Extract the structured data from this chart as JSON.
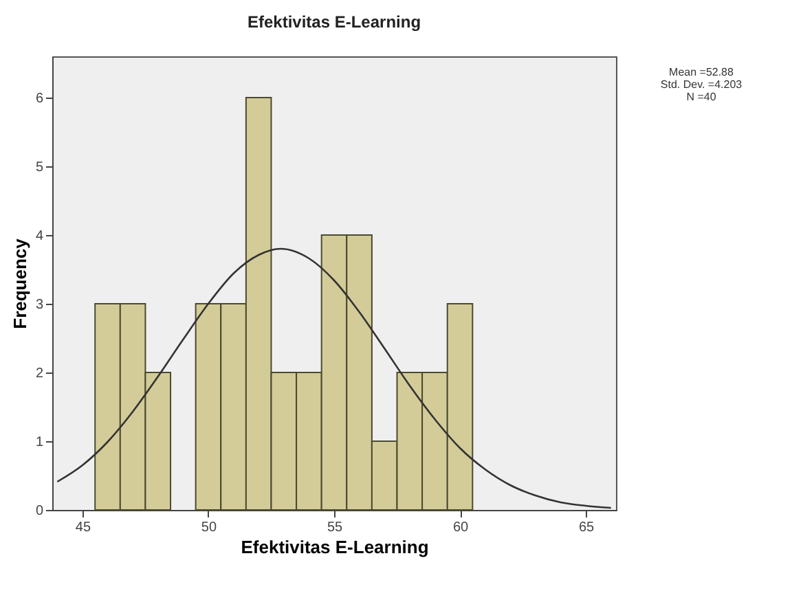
{
  "chart_data": {
    "type": "histogram",
    "title": "Efektivitas E-Learning",
    "xlabel": "Efektivitas E-Learning",
    "ylabel": "Frequency",
    "bins": [
      45.5,
      46.5,
      47.5,
      48.5,
      49.5,
      50.5,
      51.5,
      52.5,
      53.5,
      54.5,
      55.5,
      56.5,
      57.5,
      58.5,
      59.5,
      60.5
    ],
    "values": [
      3,
      3,
      2,
      0,
      3,
      3,
      6,
      2,
      2,
      4,
      4,
      1,
      2,
      2,
      3
    ],
    "color": "#d4cc98",
    "series": [
      {
        "type": "line",
        "color": "#333333",
        "x": [
          44,
          45,
          46,
          47,
          48,
          49,
          50,
          51,
          52,
          52.88,
          54,
          55,
          56,
          57,
          58,
          59,
          60,
          61,
          62,
          63,
          64,
          65,
          66
        ],
        "values": [
          0.41,
          0.65,
          0.99,
          1.43,
          1.94,
          2.48,
          3.0,
          3.44,
          3.71,
          3.8,
          3.66,
          3.34,
          2.88,
          2.35,
          1.81,
          1.32,
          0.9,
          0.59,
          0.36,
          0.21,
          0.11,
          0.06,
          0.03
        ]
      }
    ],
    "xlim": [
      43.8,
      66.2
    ],
    "ylim": [
      0,
      6.6
    ],
    "xticks": [
      45,
      50,
      55,
      60,
      65
    ],
    "yticks": [
      0,
      1,
      2,
      3,
      4,
      5,
      6
    ],
    "grid": false,
    "line_style": "solid",
    "marker": "none",
    "annotations": [
      "Mean =52.88",
      "Std. Dev. =4.203",
      "N =40"
    ]
  }
}
